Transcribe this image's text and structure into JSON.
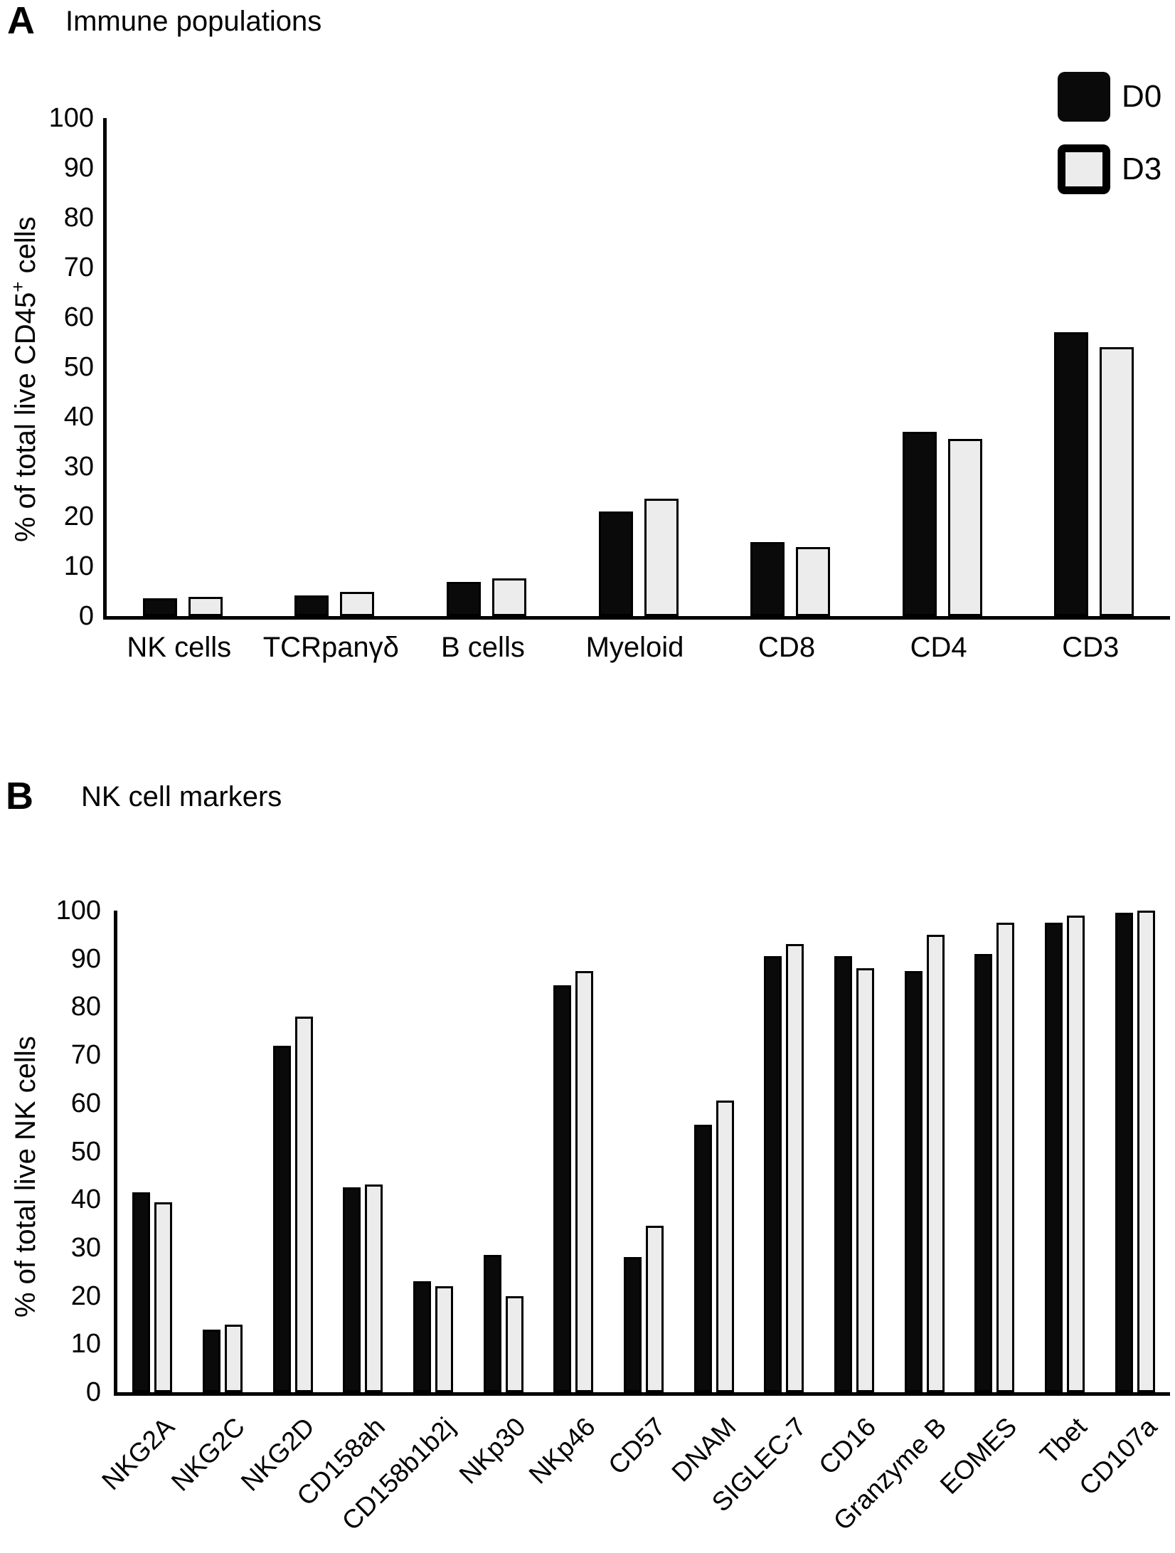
{
  "page": {
    "background": "#ffffff"
  },
  "colors": {
    "d0_fill": "#0a0a0a",
    "d3_fill": "#ececec",
    "axis": "#000000",
    "bar_border": "#000000"
  },
  "legend": {
    "items": [
      {
        "label": "D0",
        "style": "filled-black"
      },
      {
        "label": "D3",
        "style": "light-gray-outlined"
      }
    ]
  },
  "chart_data": [
    {
      "panel_letter": "A",
      "title": "Immune populations",
      "type": "bar",
      "ylabel_prefix": "% of total live CD45",
      "ylabel_sup": "+",
      "ylabel_suffix": " cells",
      "ylabel_full": "% of total live CD45+ cells",
      "ylim": [
        0,
        100
      ],
      "yticks": [
        0,
        10,
        20,
        30,
        40,
        50,
        60,
        70,
        80,
        90,
        100
      ],
      "grid": false,
      "legend_position": "top-right",
      "categories": [
        "NK cells",
        "TCRpanγδ",
        "B cells",
        "Myeloid",
        "CD8",
        "CD4",
        "CD3"
      ],
      "series": [
        {
          "name": "D0",
          "values": [
            3.5,
            4.2,
            6.8,
            21.0,
            14.8,
            37.0,
            57.0
          ]
        },
        {
          "name": "D3",
          "values": [
            3.8,
            4.9,
            7.5,
            23.5,
            13.8,
            35.5,
            54.0
          ]
        }
      ]
    },
    {
      "panel_letter": "B",
      "title": "NK cell markers",
      "type": "bar",
      "ylabel_prefix": "% of total live NK cells",
      "ylabel_sup": "",
      "ylabel_suffix": "",
      "ylabel_full": "% of total live NK cells",
      "ylim": [
        0,
        100
      ],
      "yticks": [
        0,
        10,
        20,
        30,
        40,
        50,
        60,
        70,
        80,
        90,
        100
      ],
      "grid": false,
      "legend_position": "none",
      "categories": [
        "NKG2A",
        "NKG2C",
        "NKG2D",
        "CD158ah",
        "CD158b1b2j",
        "NKp30",
        "NKp46",
        "CD57",
        "DNAM",
        "SIGLEC-7",
        "CD16",
        "Granzyme B",
        "EOMES",
        "Tbet",
        "CD107a"
      ],
      "series": [
        {
          "name": "D0",
          "values": [
            41.5,
            13.0,
            72.0,
            42.5,
            23.0,
            28.5,
            84.5,
            28.0,
            55.5,
            90.5,
            90.5,
            87.5,
            91.0,
            97.5,
            99.5
          ]
        },
        {
          "name": "D3",
          "values": [
            39.5,
            14.0,
            78.0,
            43.2,
            22.0,
            20.0,
            87.5,
            34.5,
            60.5,
            93.0,
            88.0,
            95.0,
            97.5,
            99.0,
            100.0
          ]
        }
      ]
    }
  ]
}
